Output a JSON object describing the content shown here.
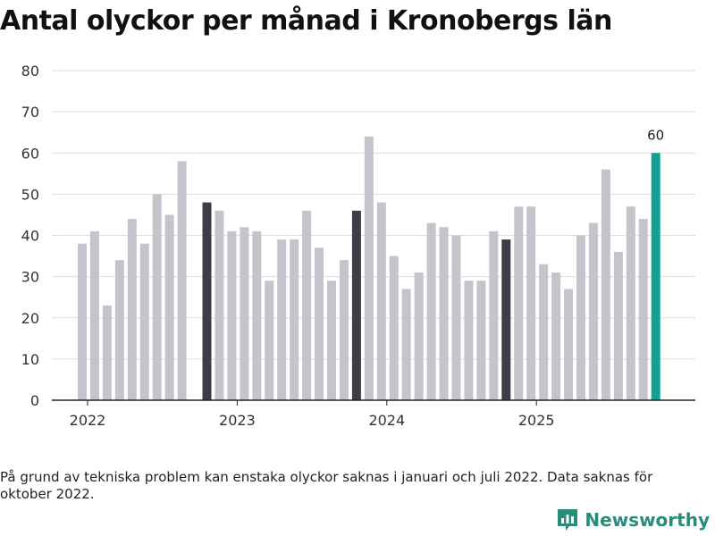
{
  "title": "Antal olyckor per månad i Kronobergs län",
  "footnote": "På grund av tekniska problem kan enstaka olyckor saknas i januari och juli 2022. Data saknas för oktober 2022.",
  "brand": {
    "name": "Newsworthy",
    "icon": "newsworthy-logo-icon"
  },
  "colors": {
    "default": "#c5c4cc",
    "highlight": "#3d3c47",
    "latest": "#13a095",
    "grid": "#dddddd",
    "axis": "#222222"
  },
  "chart_data": {
    "type": "bar",
    "title": "Antal olyckor per månad i Kronobergs län",
    "xlabel": "",
    "ylabel": "",
    "ylim": [
      0,
      80
    ],
    "yticks": [
      0,
      10,
      20,
      30,
      40,
      50,
      60,
      70,
      80
    ],
    "x_ticks": [
      {
        "label": "2022",
        "month_index": 0
      },
      {
        "label": "2023",
        "month_index": 12
      },
      {
        "label": "2024",
        "month_index": 24
      },
      {
        "label": "2025",
        "month_index": 36
      }
    ],
    "grid": true,
    "values": [
      38,
      41,
      23,
      34,
      44,
      38,
      50,
      45,
      58,
      null,
      48,
      46,
      41,
      42,
      41,
      29,
      39,
      39,
      46,
      37,
      29,
      34,
      46,
      64,
      48,
      35,
      27,
      31,
      43,
      42,
      40,
      29,
      29,
      41,
      39,
      47,
      47,
      33,
      31,
      27,
      40,
      43,
      56,
      36,
      47,
      44,
      60
    ],
    "highlight_indices": [
      10,
      22,
      34
    ],
    "latest_index": 46,
    "latest_label": "60"
  }
}
